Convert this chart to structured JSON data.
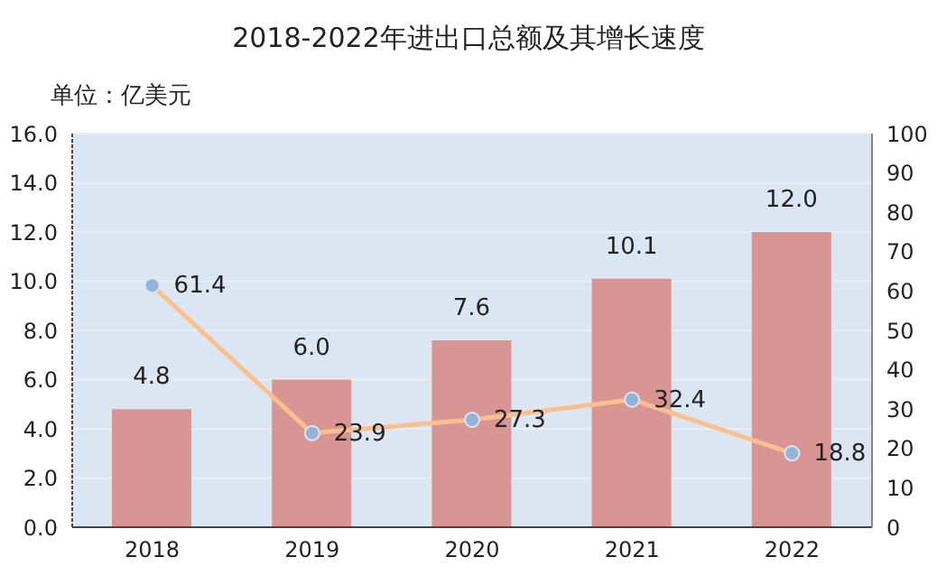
{
  "chart_data": {
    "type": "bar",
    "title": "2018-2022年进出口总额及其增长速度",
    "ylabel": "单位：亿美元",
    "categories": [
      "2018",
      "2019",
      "2020",
      "2021",
      "2022"
    ],
    "series": [
      {
        "color": "#d99594",
        "values": [
          4.8,
          6.0,
          7.6,
          10.1,
          12.0
        ],
        "value_labels": [
          "4.8",
          "6.0",
          "7.6",
          "10.1",
          "12.0"
        ]
      },
      {
        "type": "line",
        "axis": "y2",
        "color": "#f9c08e",
        "values": [
          61.4,
          23.9,
          27.3,
          32.4,
          18.8
        ],
        "value_labels": [
          "61.4",
          "23.9",
          "27.3",
          "32.4",
          "18.8"
        ]
      }
    ],
    "ylim": [
      0,
      16
    ],
    "yticks": [
      {
        "value": 0,
        "label": "0.0"
      },
      {
        "value": 2,
        "label": "2.0"
      },
      {
        "value": 4,
        "label": "4.0"
      },
      {
        "value": 6,
        "label": "6.0"
      },
      {
        "value": 8,
        "label": "8.0"
      },
      {
        "value": 10,
        "label": "10.0"
      },
      {
        "value": 12,
        "label": "12.0"
      },
      {
        "value": 14,
        "label": "14.0"
      },
      {
        "value": 16,
        "label": "16.0"
      }
    ],
    "y2lim": [
      0,
      100
    ],
    "y2ticks": [
      0,
      10,
      20,
      30,
      40,
      50,
      60,
      70,
      80,
      90,
      100
    ],
    "grid": "y",
    "legend": false,
    "marker": "circle"
  }
}
